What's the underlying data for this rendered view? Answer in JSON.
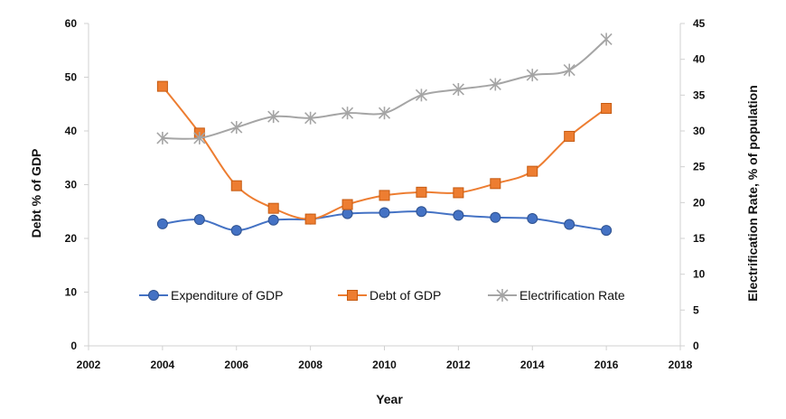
{
  "chart_data": {
    "type": "line",
    "title": "",
    "xlabel": "Year",
    "ylabel": "Debt % of GDP",
    "y2label": "Electrification Rate, % of population",
    "xlim": [
      2002,
      2018
    ],
    "ylim": [
      0,
      60
    ],
    "y2lim": [
      0,
      45
    ],
    "x_ticks": [
      2002,
      2004,
      2006,
      2008,
      2010,
      2012,
      2014,
      2016,
      2018
    ],
    "y_ticks": [
      0,
      10,
      20,
      30,
      40,
      50,
      60
    ],
    "y2_ticks": [
      0,
      5,
      10,
      15,
      20,
      25,
      30,
      35,
      40,
      45
    ],
    "legend_position": "center",
    "series": [
      {
        "name": "Expenditure of GDP",
        "axis": "left",
        "color": "#4472C4",
        "marker": "circle",
        "x": [
          2004,
          2005,
          2006,
          2007,
          2008,
          2009,
          2010,
          2011,
          2012,
          2013,
          2014,
          2015,
          2016
        ],
        "values": [
          22.7,
          23.5,
          21.5,
          23.4,
          23.6,
          24.6,
          24.8,
          25.0,
          24.3,
          23.9,
          23.7,
          22.6,
          21.5
        ]
      },
      {
        "name": "Debt of GDP",
        "axis": "left",
        "color": "#ED7D31",
        "marker": "square",
        "x": [
          2004,
          2005,
          2006,
          2007,
          2008,
          2009,
          2010,
          2011,
          2012,
          2013,
          2014,
          2015,
          2016
        ],
        "values": [
          48.3,
          39.6,
          29.8,
          25.6,
          23.6,
          26.3,
          28.0,
          28.6,
          28.5,
          30.2,
          32.5,
          39.0,
          44.2
        ]
      },
      {
        "name": "Electrification Rate",
        "axis": "right",
        "color": "#A5A5A5",
        "marker": "star",
        "x": [
          2004,
          2005,
          2006,
          2007,
          2008,
          2009,
          2010,
          2011,
          2012,
          2013,
          2014,
          2015,
          2016
        ],
        "values": [
          29.0,
          29.0,
          30.5,
          32.0,
          31.8,
          32.5,
          32.5,
          35.0,
          35.8,
          36.5,
          37.8,
          38.5,
          42.8
        ]
      }
    ]
  }
}
